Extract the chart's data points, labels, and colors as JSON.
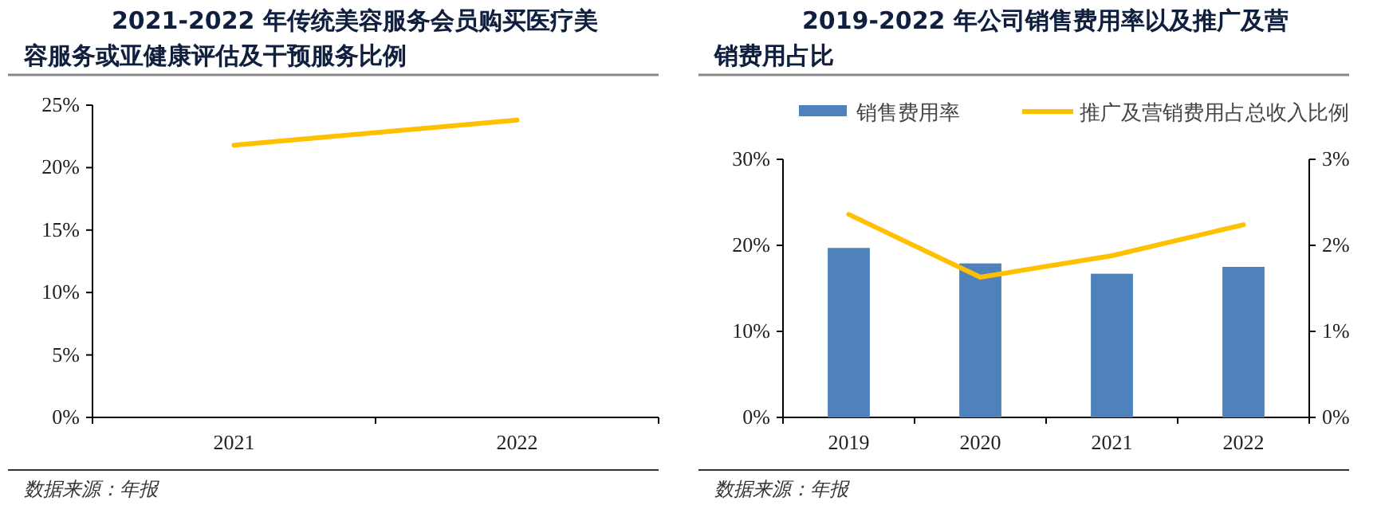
{
  "chart_data": [
    {
      "type": "line",
      "title": "2021-2022 年传统美容服务会员购买医疗美容服务或亚健康评估及干预服务比例",
      "categories": [
        "2021",
        "2022"
      ],
      "series": [
        {
          "color": "#ffc000",
          "values": [
            21.8,
            23.8
          ]
        }
      ],
      "ylim": [
        0,
        25
      ],
      "yticks": [
        {
          "value": 0,
          "label": "0%"
        },
        {
          "value": 5,
          "label": "5%"
        },
        {
          "value": 10,
          "label": "10%"
        },
        {
          "value": 15,
          "label": "15%"
        },
        {
          "value": 20,
          "label": "20%"
        },
        {
          "value": 25,
          "label": "25%"
        }
      ],
      "annotations": [
        "数据来源：年报"
      ]
    },
    {
      "type": "bar",
      "title": "2019-2022 年公司销售费用率以及推广及营销费用占比",
      "categories": [
        "2019",
        "2020",
        "2021",
        "2022"
      ],
      "series": [
        {
          "name": "销售费用率",
          "color": "#4f81bd",
          "values": [
            19.7,
            17.9,
            16.7,
            17.5
          ]
        },
        {
          "name": "推广及营销费用占总收入比例",
          "type": "line",
          "axis": "y2",
          "color": "#ffc000",
          "values": [
            2.36,
            1.63,
            1.88,
            2.24
          ]
        }
      ],
      "ylim": [
        0,
        30
      ],
      "yticks": [
        {
          "value": 0,
          "label": "0%"
        },
        {
          "value": 10,
          "label": "10%"
        },
        {
          "value": 20,
          "label": "20%"
        },
        {
          "value": 30,
          "label": "30%"
        }
      ],
      "y2lim": [
        0,
        3
      ],
      "y2ticks": [
        {
          "value": 0,
          "label": "0%"
        },
        {
          "value": 1,
          "label": "1%"
        },
        {
          "value": 2,
          "label": "2%"
        },
        {
          "value": 3,
          "label": "3%"
        }
      ],
      "legend": "top",
      "annotations": [
        "数据来源：年报"
      ]
    }
  ]
}
